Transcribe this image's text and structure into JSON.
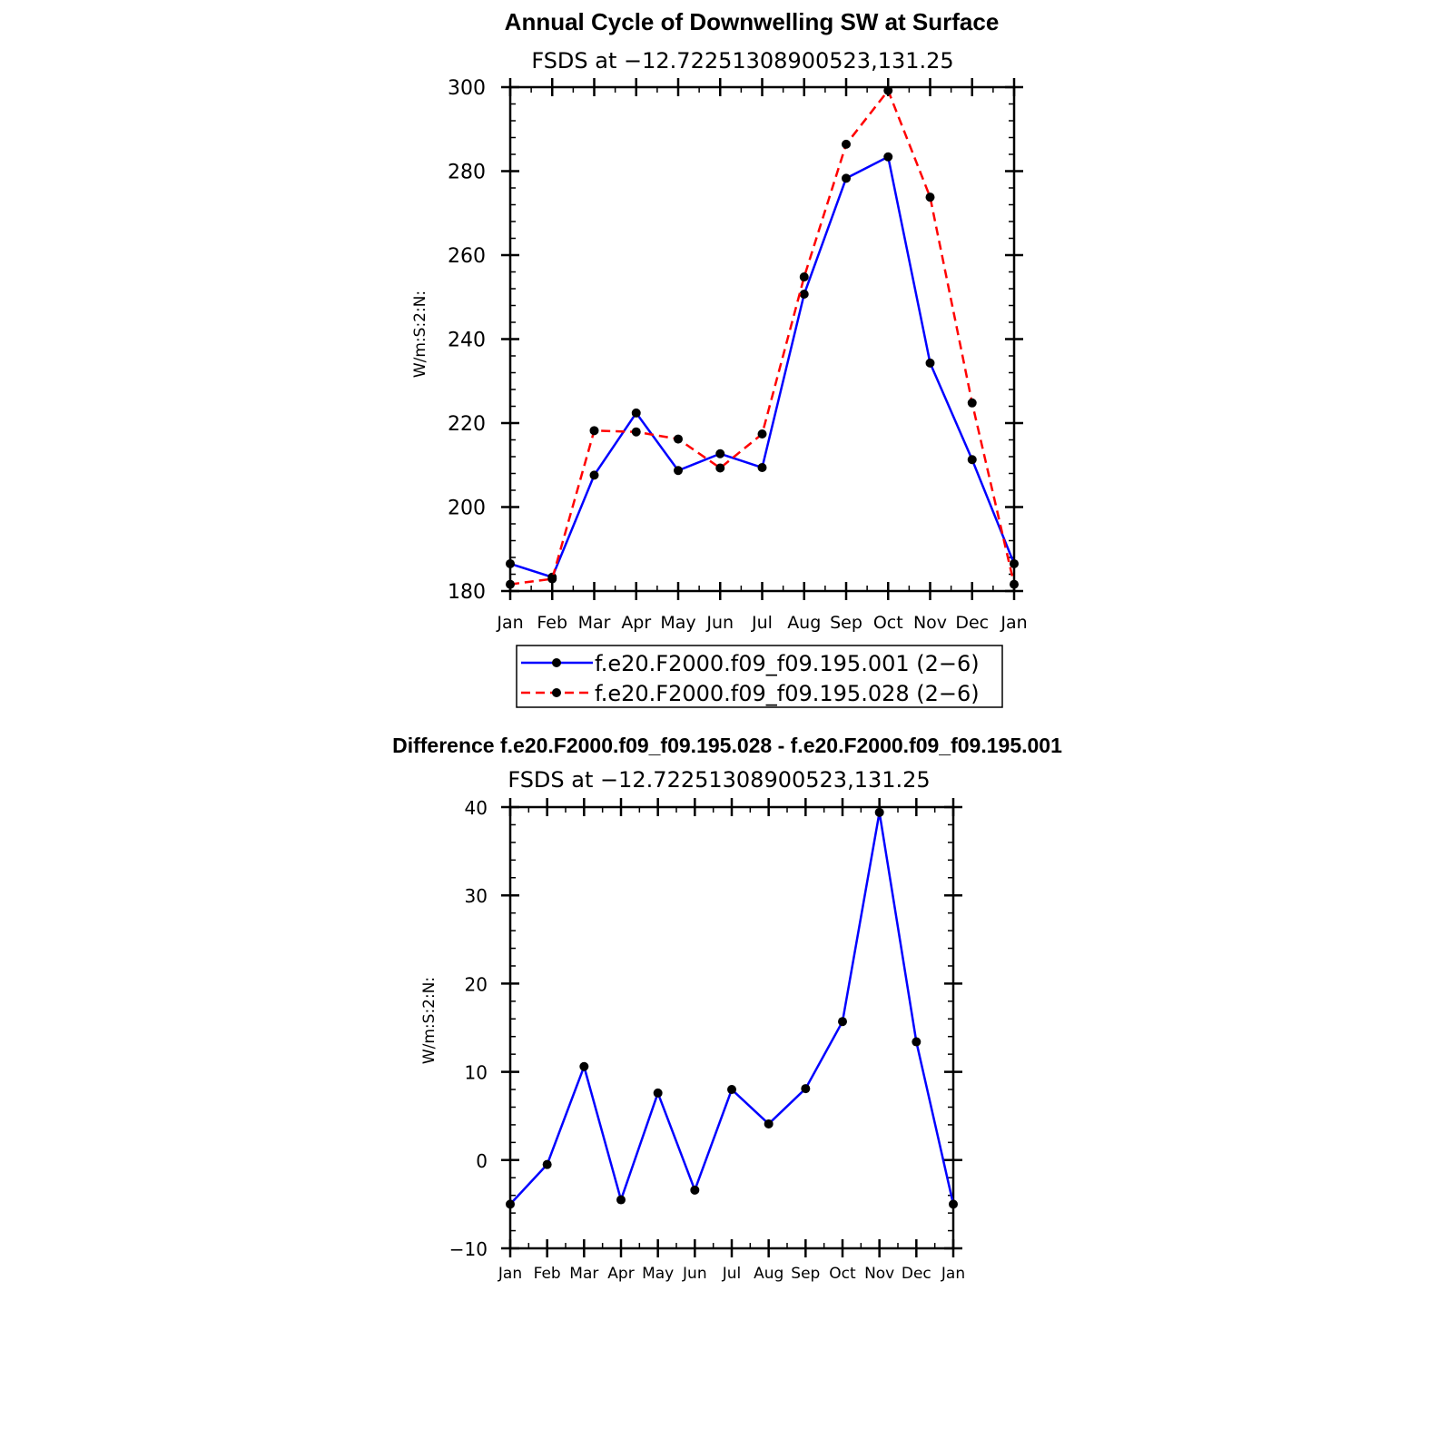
{
  "chart_data": [
    {
      "type": "line",
      "title": "Annual Cycle of Downwelling SW at Surface",
      "subtitle": "FSDS at −12.72251308900523,131.25",
      "ylabel": "W/m:S:2:N:",
      "xlabel": "",
      "categories": [
        "Jan",
        "Feb",
        "Mar",
        "Apr",
        "May",
        "Jun",
        "Jul",
        "Aug",
        "Sep",
        "Oct",
        "Nov",
        "Dec",
        "Jan"
      ],
      "ylim": [
        180,
        300
      ],
      "yticks": [
        "180",
        "200",
        "220",
        "240",
        "260",
        "280",
        "300"
      ],
      "series": [
        {
          "name": "f.e20.F2000.f09_f09.195.001 (2−6)",
          "color": "#0000ff",
          "style": "solid",
          "values": [
            186.5,
            183.3,
            207.6,
            222.4,
            208.7,
            212.7,
            209.4,
            250.7,
            278.3,
            283.4,
            234.3,
            211.3,
            186.5
          ]
        },
        {
          "name": "f.e20.F2000.f09_f09.195.028 (2−6)",
          "color": "#ff0000",
          "style": "dashed",
          "values": [
            181.6,
            182.9,
            218.2,
            217.9,
            216.2,
            209.3,
            217.4,
            254.8,
            286.4,
            299.2,
            273.8,
            224.8,
            181.6
          ]
        }
      ]
    },
    {
      "type": "line",
      "title": "Difference f.e20.F2000.f09_f09.195.028 - f.e20.F2000.f09_f09.195.001",
      "subtitle": "FSDS at −12.72251308900523,131.25",
      "ylabel": "W/m:S:2:N:",
      "xlabel": "",
      "categories": [
        "Jan",
        "Feb",
        "Mar",
        "Apr",
        "May",
        "Jun",
        "Jul",
        "Aug",
        "Sep",
        "Oct",
        "Nov",
        "Dec",
        "Jan"
      ],
      "ylim": [
        -10,
        40
      ],
      "yticks": [
        "−10",
        "0",
        "10",
        "20",
        "30",
        "40"
      ],
      "series": [
        {
          "name": "Difference",
          "color": "#0000ff",
          "style": "solid",
          "values": [
            -5.0,
            -0.5,
            10.6,
            -4.5,
            7.6,
            -3.4,
            8.0,
            4.1,
            8.1,
            15.7,
            39.4,
            13.4,
            -5.0
          ]
        }
      ]
    }
  ]
}
